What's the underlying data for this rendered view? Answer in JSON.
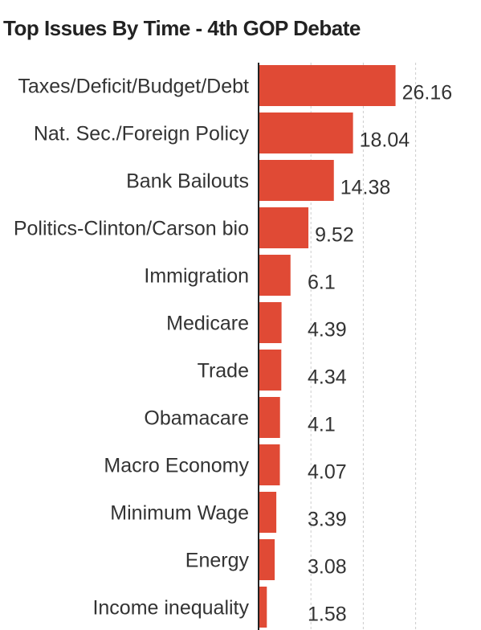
{
  "chart_data": {
    "type": "bar",
    "orientation": "horizontal",
    "title": "Top Issues By Time - 4th GOP Debate",
    "categories": [
      "Taxes/Deficit/Budget/Debt",
      "Nat. Sec./Foreign Policy",
      "Bank Bailouts",
      "Politics-Clinton/Carson bio",
      "Immigration",
      "Medicare",
      "Trade",
      "Obamacare",
      "Macro Economy",
      "Minimum Wage",
      "Energy",
      "Income inequality"
    ],
    "values": [
      26.16,
      18.04,
      14.38,
      9.52,
      6.1,
      4.39,
      4.34,
      4.1,
      4.07,
      3.39,
      3.08,
      1.58
    ],
    "value_labels": [
      "26.16",
      "18.04",
      "14.38",
      "9.52",
      "6.1",
      "4.39",
      "4.34",
      "4.1",
      "4.07",
      "3.39",
      "3.08",
      "1.58"
    ],
    "xlim": [
      0,
      30
    ],
    "gridlines": [
      10,
      20,
      30
    ],
    "grid": true,
    "bar_color": "#e04a35"
  }
}
